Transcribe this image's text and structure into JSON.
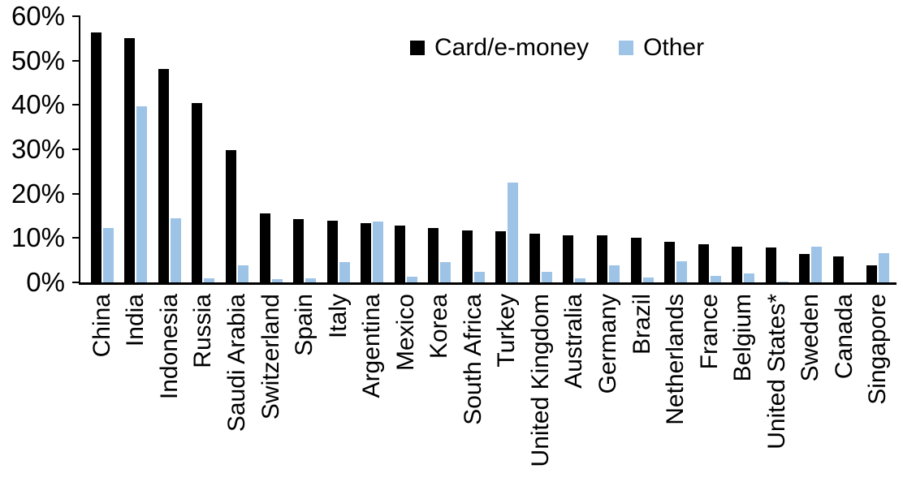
{
  "chart_data": {
    "type": "bar",
    "title": "",
    "categories": [
      "China",
      "India",
      "Indonesia",
      "Russia",
      "Saudi Arabia",
      "Switzerland",
      "Spain",
      "Italy",
      "Argentina",
      "Mexico",
      "Korea",
      "South Africa",
      "Turkey",
      "United Kingdom",
      "Australia",
      "Germany",
      "Brazil",
      "Netherlands",
      "France",
      "Belgium",
      "United States*",
      "Sweden",
      "Canada",
      "Singapore"
    ],
    "series": [
      {
        "name": "Card/e-money",
        "color": "#000000",
        "values": [
          56.3,
          55.0,
          48.2,
          40.5,
          29.8,
          15.5,
          14.2,
          14.0,
          13.3,
          12.9,
          12.2,
          11.7,
          11.6,
          11.0,
          10.7,
          10.6,
          10.0,
          9.2,
          8.6,
          8.1,
          7.8,
          6.4,
          5.8,
          3.8
        ]
      },
      {
        "name": "Other",
        "color": "#9DC3E6",
        "values": [
          12.2,
          39.7,
          14.5,
          1.0,
          3.8,
          0.8,
          1.0,
          4.6,
          13.8,
          1.3,
          4.6,
          2.4,
          22.6,
          2.3,
          1.0,
          3.9,
          1.1,
          4.8,
          1.5,
          2.0,
          0.2,
          8.0,
          0,
          6.6
        ]
      }
    ],
    "ylim": [
      0,
      60
    ],
    "yticks": [
      0,
      10,
      20,
      30,
      40,
      50,
      60
    ],
    "ytick_suffix": "%",
    "xlabel": "",
    "ylabel": "",
    "grid": false,
    "legend_position": "top-center"
  }
}
